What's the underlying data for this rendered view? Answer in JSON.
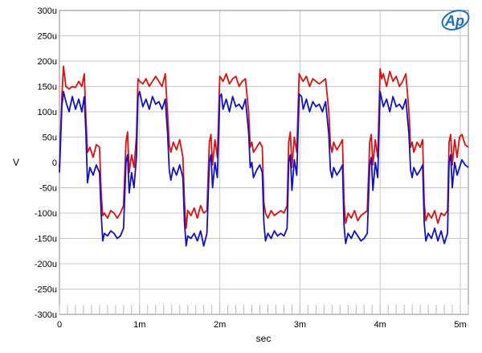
{
  "chart_data": {
    "type": "line",
    "title": "",
    "xlabel": "sec",
    "ylabel": "V",
    "xlim": [
      0,
      5.1
    ],
    "ylim": [
      -300,
      300
    ],
    "x_unit_note_hidden": "",
    "xticks": [
      {
        "value": 0,
        "label": "0"
      },
      {
        "value": 1,
        "label": "1m"
      },
      {
        "value": 2,
        "label": "2m"
      },
      {
        "value": 3,
        "label": "3m"
      },
      {
        "value": 4,
        "label": "4m"
      },
      {
        "value": 5,
        "label": "5m"
      }
    ],
    "yticks": [
      {
        "value": 300,
        "label": "300u"
      },
      {
        "value": 250,
        "label": "250u"
      },
      {
        "value": 200,
        "label": "200u"
      },
      {
        "value": 150,
        "label": "150u"
      },
      {
        "value": 100,
        "label": "100u"
      },
      {
        "value": 50,
        "label": "50u"
      },
      {
        "value": 0,
        "label": "0"
      },
      {
        "value": -50,
        "label": "-50u"
      },
      {
        "value": -100,
        "label": "-100u"
      },
      {
        "value": -150,
        "label": "-150u"
      },
      {
        "value": -200,
        "label": "-200u"
      },
      {
        "value": -250,
        "label": "-250u"
      },
      {
        "value": -300,
        "label": "-300u"
      }
    ],
    "grid": true,
    "series": [
      {
        "color": "#e01010",
        "x": [
          0,
          0.03,
          0.05,
          0.08,
          0.12,
          0.16,
          0.2,
          0.24,
          0.28,
          0.31,
          0.33,
          0.35,
          0.38,
          0.42,
          0.46,
          0.5,
          0.52,
          0.54,
          0.56,
          0.6,
          0.64,
          0.68,
          0.72,
          0.76,
          0.8,
          0.83,
          0.85,
          0.87,
          0.9,
          0.93,
          0.96,
          0.98,
          1.0,
          1.04,
          1.08,
          1.12,
          1.16,
          1.2,
          1.24,
          1.28,
          1.32,
          1.35,
          1.37,
          1.39,
          1.42,
          1.46,
          1.5,
          1.54,
          1.56,
          1.58,
          1.6,
          1.64,
          1.68,
          1.72,
          1.76,
          1.8,
          1.84,
          1.87,
          1.89,
          1.91,
          1.94,
          1.97,
          2.0,
          2.02,
          2.04,
          2.08,
          2.12,
          2.16,
          2.2,
          2.24,
          2.28,
          2.32,
          2.36,
          2.38,
          2.4,
          2.42,
          2.46,
          2.5,
          2.53,
          2.55,
          2.57,
          2.6,
          2.64,
          2.68,
          2.72,
          2.76,
          2.8,
          2.84,
          2.86,
          2.88,
          2.9,
          2.93,
          2.96,
          2.99,
          3.02,
          3.04,
          3.08,
          3.12,
          3.16,
          3.2,
          3.24,
          3.28,
          3.32,
          3.36,
          3.38,
          3.4,
          3.42,
          3.46,
          3.5,
          3.53,
          3.55,
          3.57,
          3.6,
          3.64,
          3.68,
          3.72,
          3.76,
          3.8,
          3.84,
          3.87,
          3.89,
          3.91,
          3.94,
          3.97,
          4.0,
          4.02,
          4.04,
          4.08,
          4.12,
          4.16,
          4.2,
          4.24,
          4.28,
          4.32,
          4.36,
          4.38,
          4.4,
          4.42,
          4.46,
          4.5,
          4.53,
          4.55,
          4.57,
          4.6,
          4.64,
          4.68,
          4.72,
          4.76,
          4.8,
          4.84,
          4.86,
          4.88,
          4.9,
          4.93,
          4.96,
          4.99,
          5.02,
          5.06,
          5.1
        ],
        "y": [
          -10,
          130,
          190,
          150,
          145,
          150,
          148,
          160,
          150,
          175,
          90,
          20,
          30,
          10,
          35,
          30,
          -60,
          -105,
          -100,
          -110,
          -95,
          -100,
          -110,
          -100,
          -85,
          40,
          60,
          -20,
          15,
          -10,
          50,
          165,
          160,
          155,
          165,
          150,
          160,
          170,
          160,
          150,
          175,
          95,
          35,
          20,
          40,
          25,
          45,
          10,
          -80,
          -130,
          -95,
          -105,
          -90,
          -110,
          -85,
          -100,
          -95,
          40,
          55,
          -5,
          45,
          10,
          170,
          165,
          160,
          175,
          155,
          165,
          170,
          150,
          160,
          165,
          100,
          30,
          40,
          20,
          30,
          40,
          30,
          -80,
          -100,
          -110,
          -95,
          -105,
          -100,
          -95,
          -100,
          -85,
          40,
          60,
          -10,
          50,
          20,
          175,
          165,
          160,
          170,
          150,
          165,
          160,
          155,
          160,
          165,
          100,
          35,
          20,
          40,
          25,
          35,
          45,
          -80,
          -120,
          -100,
          -110,
          -95,
          -115,
          -105,
          -100,
          -95,
          40,
          55,
          -5,
          45,
          10,
          185,
          165,
          175,
          150,
          180,
          160,
          170,
          150,
          160,
          175,
          100,
          30,
          40,
          20,
          40,
          30,
          45,
          -80,
          -115,
          -100,
          -110,
          -95,
          -120,
          -100,
          -105,
          -95,
          40,
          55,
          -5,
          45,
          10,
          50,
          55,
          35,
          30
        ]
      },
      {
        "color": "#1010d0",
        "x": [
          0,
          0.03,
          0.05,
          0.08,
          0.12,
          0.16,
          0.2,
          0.24,
          0.28,
          0.31,
          0.33,
          0.35,
          0.38,
          0.42,
          0.46,
          0.5,
          0.52,
          0.54,
          0.56,
          0.6,
          0.64,
          0.68,
          0.72,
          0.76,
          0.8,
          0.83,
          0.85,
          0.87,
          0.9,
          0.93,
          0.96,
          0.98,
          1.0,
          1.04,
          1.08,
          1.12,
          1.16,
          1.2,
          1.24,
          1.28,
          1.32,
          1.35,
          1.37,
          1.39,
          1.42,
          1.46,
          1.5,
          1.54,
          1.56,
          1.58,
          1.6,
          1.64,
          1.68,
          1.72,
          1.76,
          1.8,
          1.84,
          1.87,
          1.89,
          1.91,
          1.94,
          1.97,
          2.0,
          2.02,
          2.04,
          2.08,
          2.12,
          2.16,
          2.2,
          2.24,
          2.28,
          2.32,
          2.36,
          2.38,
          2.4,
          2.42,
          2.46,
          2.5,
          2.53,
          2.55,
          2.57,
          2.6,
          2.64,
          2.68,
          2.72,
          2.76,
          2.8,
          2.84,
          2.86,
          2.88,
          2.9,
          2.93,
          2.96,
          2.99,
          3.02,
          3.04,
          3.08,
          3.12,
          3.16,
          3.2,
          3.24,
          3.28,
          3.32,
          3.36,
          3.38,
          3.4,
          3.42,
          3.46,
          3.5,
          3.53,
          3.55,
          3.57,
          3.6,
          3.64,
          3.68,
          3.72,
          3.76,
          3.8,
          3.84,
          3.87,
          3.89,
          3.91,
          3.94,
          3.97,
          4.0,
          4.02,
          4.04,
          4.08,
          4.12,
          4.16,
          4.2,
          4.24,
          4.28,
          4.32,
          4.36,
          4.38,
          4.4,
          4.42,
          4.46,
          4.5,
          4.53,
          4.55,
          4.57,
          4.6,
          4.64,
          4.68,
          4.72,
          4.76,
          4.8,
          4.84,
          4.86,
          4.88,
          4.9,
          4.93,
          4.96,
          4.99,
          5.02,
          5.06,
          5.1
        ],
        "y": [
          -20,
          110,
          140,
          120,
          100,
          130,
          105,
          125,
          100,
          130,
          60,
          -40,
          -10,
          -25,
          -5,
          -20,
          -100,
          -155,
          -140,
          -145,
          -135,
          -140,
          -150,
          -145,
          -130,
          0,
          15,
          -60,
          -20,
          -50,
          10,
          130,
          140,
          110,
          125,
          105,
          130,
          115,
          120,
          105,
          125,
          55,
          -15,
          -35,
          -10,
          -25,
          -5,
          -30,
          -120,
          -165,
          -145,
          -150,
          -140,
          -155,
          -135,
          -165,
          -140,
          0,
          15,
          -50,
          0,
          -30,
          130,
          135,
          105,
          125,
          100,
          130,
          110,
          115,
          105,
          125,
          60,
          -10,
          0,
          -30,
          -15,
          -5,
          -20,
          -120,
          -155,
          -140,
          -150,
          -135,
          -145,
          -140,
          -145,
          -130,
          0,
          15,
          -55,
          5,
          -25,
          135,
          130,
          105,
          125,
          100,
          120,
          110,
          115,
          100,
          120,
          55,
          -15,
          -30,
          -10,
          -25,
          -15,
          -5,
          -125,
          -160,
          -140,
          -150,
          -135,
          -145,
          -155,
          -150,
          -140,
          -5,
          10,
          -55,
          0,
          -30,
          140,
          125,
          110,
          125,
          100,
          130,
          110,
          115,
          105,
          125,
          55,
          -15,
          -30,
          -10,
          -25,
          -15,
          -5,
          -120,
          -155,
          -140,
          -150,
          -130,
          -155,
          -135,
          -160,
          -140,
          0,
          15,
          -50,
          0,
          -25,
          -10,
          5,
          -5,
          -10
        ]
      }
    ]
  },
  "logo": {
    "text": "Ap",
    "color": "#1a6fbf"
  }
}
